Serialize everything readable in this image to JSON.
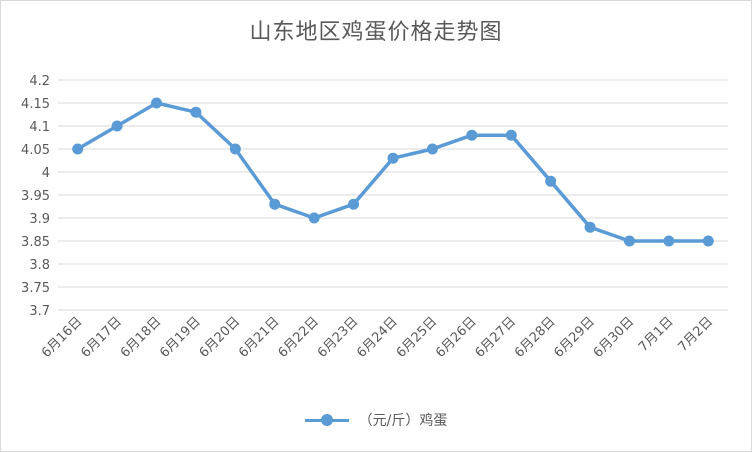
{
  "chart_data": {
    "type": "line",
    "title": "山东地区鸡蛋价格走势图",
    "xlabel": "",
    "ylabel": "",
    "categories": [
      "6月16日",
      "6月17日",
      "6月18日",
      "6月19日",
      "6月20日",
      "6月21日",
      "6月22日",
      "6月23日",
      "6月24日",
      "6月25日",
      "6月26日",
      "6月27日",
      "6月28日",
      "6月29日",
      "6月30日",
      "7月1日",
      "7月2日"
    ],
    "series": [
      {
        "name": "（元/斤）鸡蛋",
        "color": "#5b9bd5",
        "values": [
          4.05,
          4.1,
          4.15,
          4.13,
          4.05,
          3.93,
          3.9,
          3.93,
          4.03,
          4.05,
          4.08,
          4.08,
          3.98,
          3.88,
          3.85,
          3.85,
          3.85
        ]
      }
    ],
    "ylim": [
      3.7,
      4.2
    ],
    "yticks": [
      "3.7",
      "3.75",
      "3.8",
      "3.85",
      "3.9",
      "3.95",
      "4",
      "4.05",
      "4.1",
      "4.15",
      "4.2"
    ],
    "grid": true,
    "legend_position": "bottom"
  }
}
